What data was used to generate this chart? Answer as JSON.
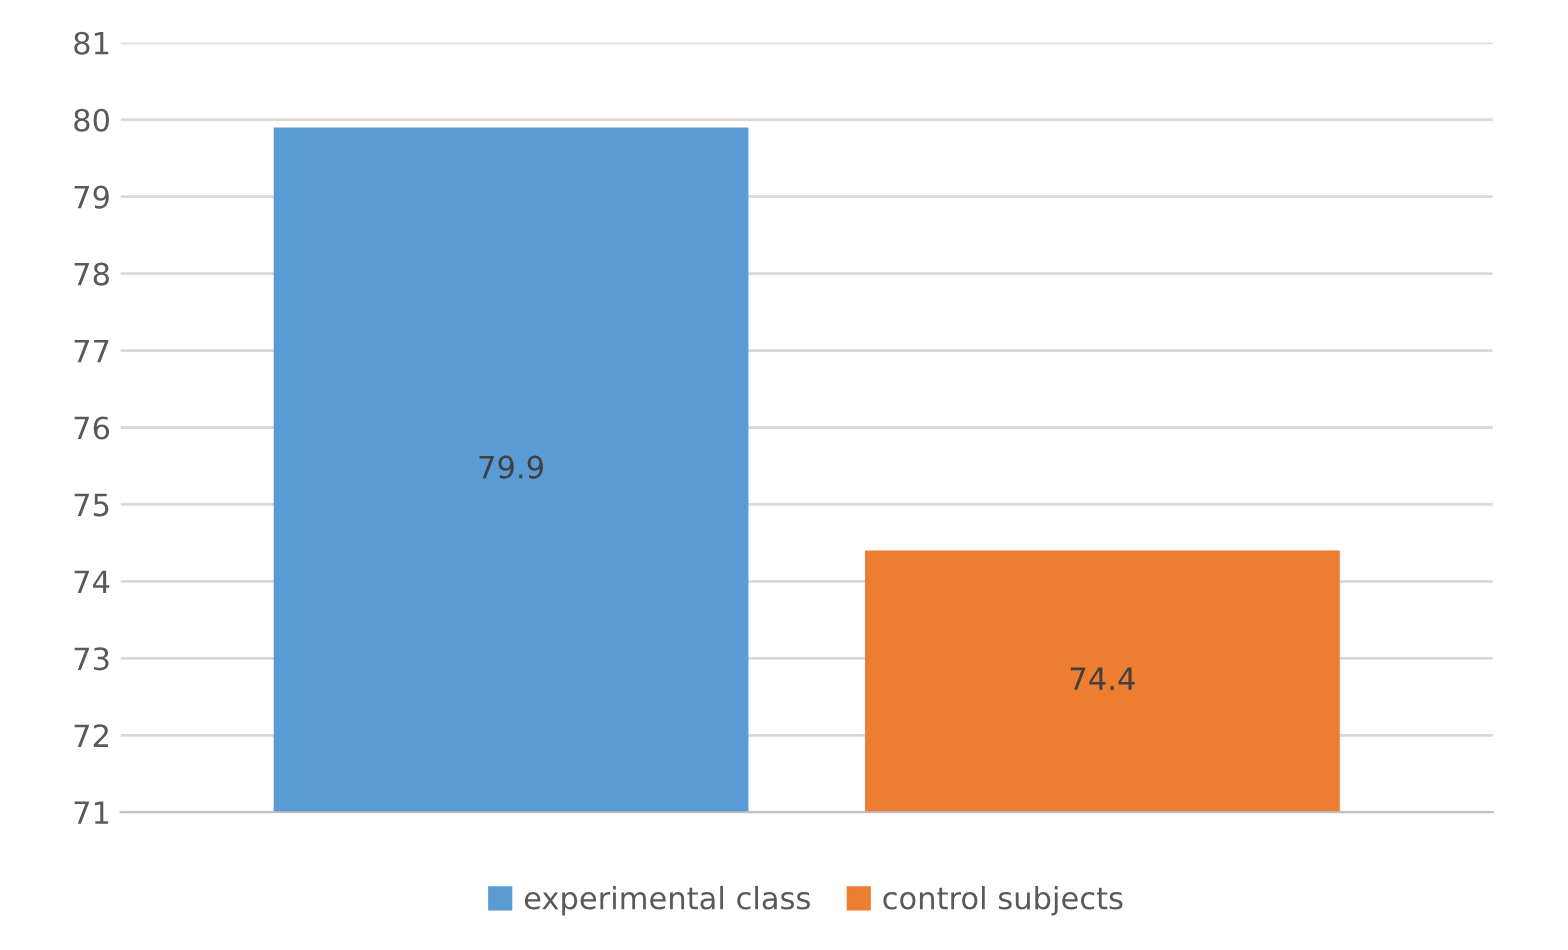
{
  "chart_data": {
    "type": "bar",
    "categories": [
      null
    ],
    "series": [
      {
        "name": "experimental class",
        "color": "#5b9bd5",
        "values": [
          79.9
        ]
      },
      {
        "name": "control subjects",
        "color": "#ed7d31",
        "values": [
          74.4
        ]
      }
    ],
    "ylim": [
      71,
      81
    ],
    "yticks": [
      71,
      72,
      73,
      74,
      75,
      76,
      77,
      78,
      79,
      80,
      81
    ],
    "grid": "y",
    "legend": "bottom",
    "data_labels": true
  }
}
